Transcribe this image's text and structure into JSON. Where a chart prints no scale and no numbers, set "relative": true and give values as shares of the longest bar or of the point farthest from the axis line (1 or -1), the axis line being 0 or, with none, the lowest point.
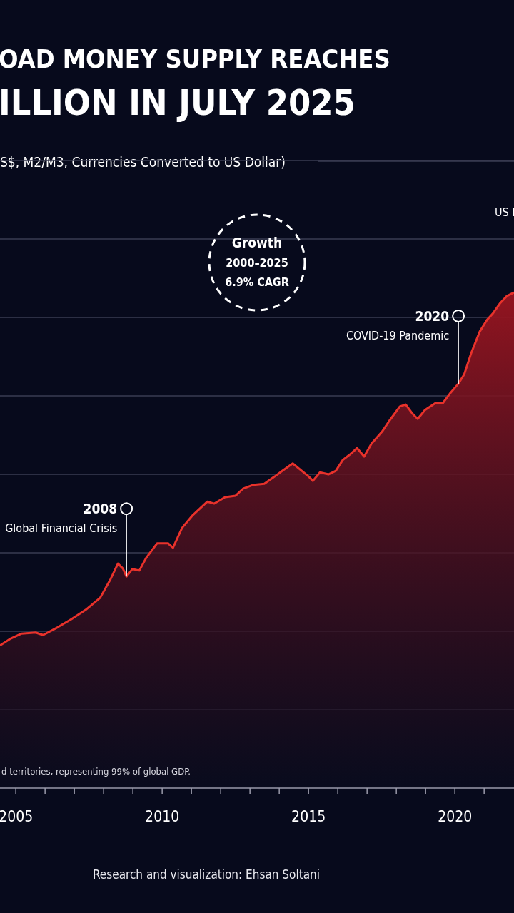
{
  "chart_data": {
    "type": "area",
    "title": "OAD MONEY SUPPLY REACHES\nILLION IN JULY 2025",
    "subtitle": "S$, M2/M3, Currencies Converted to US Dollar)",
    "relative": true,
    "grid": "y",
    "color": "#e8322b",
    "x": [
      2004.46,
      2004.83,
      2005.2,
      2005.68,
      2005.93,
      2006.41,
      2006.9,
      2007.39,
      2007.88,
      2008.24,
      2008.49,
      2008.66,
      2008.78,
      2008.98,
      2009.22,
      2009.46,
      2009.83,
      2010.2,
      2010.37,
      2010.68,
      2011.05,
      2011.54,
      2011.78,
      2012.15,
      2012.51,
      2012.76,
      2013.12,
      2013.49,
      2013.85,
      2014.1,
      2014.46,
      2014.71,
      2015.0,
      2015.15,
      2015.39,
      2015.68,
      2015.93,
      2016.17,
      2016.41,
      2016.66,
      2016.9,
      2017.15,
      2017.51,
      2017.76,
      2018.12,
      2018.32,
      2018.56,
      2018.73,
      2018.98,
      2019.34,
      2019.59,
      2019.83,
      2020.12,
      2020.32,
      2020.56,
      2020.85,
      2021.1,
      2021.29,
      2021.54,
      2021.78,
      2022.02
    ],
    "values": [
      0.288,
      0.302,
      0.312,
      0.314,
      0.309,
      0.324,
      0.341,
      0.36,
      0.384,
      0.422,
      0.453,
      0.443,
      0.427,
      0.442,
      0.439,
      0.465,
      0.494,
      0.494,
      0.485,
      0.525,
      0.551,
      0.578,
      0.574,
      0.587,
      0.59,
      0.604,
      0.612,
      0.614,
      0.629,
      0.64,
      0.655,
      0.643,
      0.629,
      0.62,
      0.637,
      0.633,
      0.64,
      0.662,
      0.673,
      0.686,
      0.669,
      0.695,
      0.719,
      0.741,
      0.77,
      0.774,
      0.755,
      0.745,
      0.763,
      0.777,
      0.777,
      0.796,
      0.816,
      0.835,
      0.878,
      0.921,
      0.945,
      0.957,
      0.978,
      0.993,
      1.0
    ],
    "xlim": [
      2004.46,
      2022.02
    ],
    "xticks": [
      2005,
      {
        "value": 2006,
        "label": null
      },
      {
        "value": 2007,
        "label": null
      },
      {
        "value": 2008,
        "label": null
      },
      {
        "value": 2009,
        "label": null
      },
      2010,
      {
        "value": 2011,
        "label": null
      },
      {
        "value": 2012,
        "label": null
      },
      {
        "value": 2013,
        "label": null
      },
      {
        "value": 2014,
        "label": null
      },
      2015,
      {
        "value": 2016,
        "label": null
      },
      {
        "value": 2017,
        "label": null
      },
      {
        "value": 2018,
        "label": null
      },
      {
        "value": 2019,
        "label": null
      },
      2020,
      {
        "value": 2021,
        "label": null
      }
    ],
    "annotations": [
      {
        "text": "2008\nGlobal Financial Crisis",
        "x": 2008.78,
        "y": 0.427
      },
      {
        "text": "2020\nCOVID-19 Pandemic",
        "x": 2020.12,
        "y": 0.816
      },
      "Growth\n2000–2025\n6.9% CAGR",
      "US I",
      "d territories, representing 99% of global GDP.",
      "Research and visualization: Ehsan Soltani"
    ]
  }
}
